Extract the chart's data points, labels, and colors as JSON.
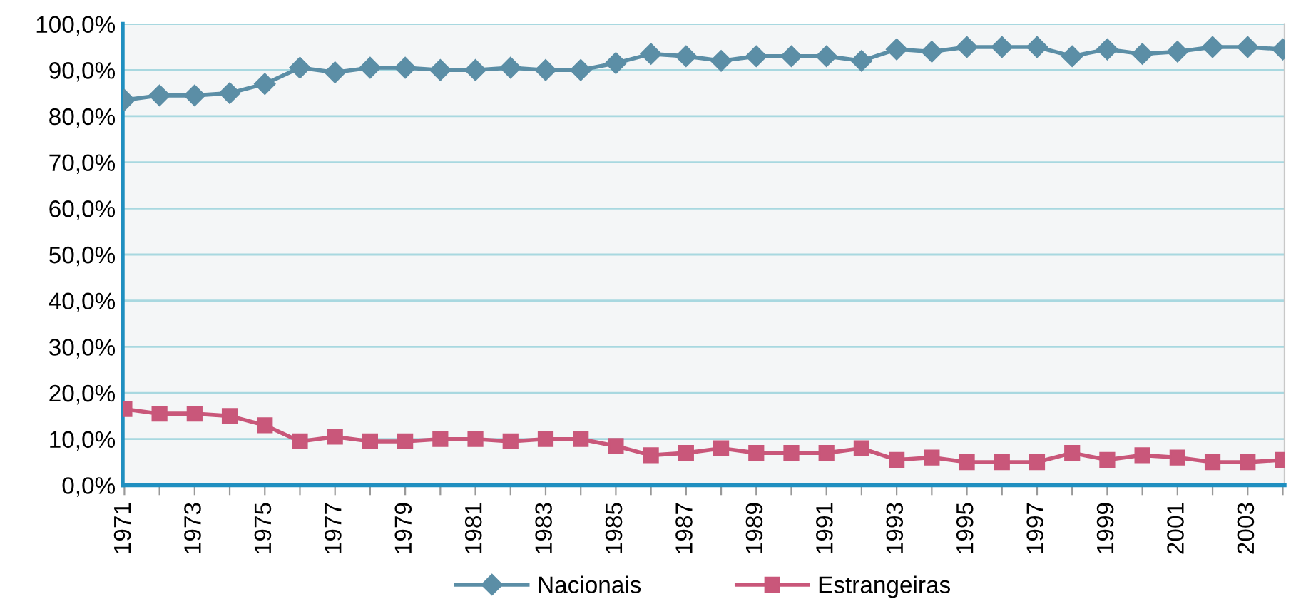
{
  "chart_data": {
    "type": "line",
    "categories": [
      "1971",
      null,
      "1973",
      null,
      "1975",
      null,
      "1977",
      null,
      "1979",
      null,
      "1981",
      null,
      "1983",
      null,
      "1985",
      null,
      "1987",
      null,
      "1989",
      null,
      "1991",
      null,
      "1993",
      null,
      "1995",
      null,
      "1997",
      null,
      "1999",
      null,
      "2001",
      null,
      "2003",
      null
    ],
    "series": [
      {
        "name": "Nacionais",
        "color": "#5b8ea6",
        "marker": "diamond",
        "values": [
          83.5,
          84.5,
          84.5,
          85,
          87,
          90.5,
          89.5,
          90.5,
          90.5,
          90,
          90,
          90.5,
          90,
          90,
          91.5,
          93.5,
          93,
          92,
          93,
          93,
          93,
          92,
          94.5,
          94,
          95,
          95,
          95,
          93,
          94.5,
          93.5,
          94,
          95,
          95,
          94.5
        ]
      },
      {
        "name": "Estrangeiras",
        "color": "#c9577a",
        "marker": "square",
        "values": [
          16.5,
          15.5,
          15.5,
          15,
          13,
          9.5,
          10.5,
          9.5,
          9.5,
          10,
          10,
          9.5,
          10,
          10,
          8.5,
          6.5,
          7,
          8,
          7,
          7,
          7,
          8,
          5.5,
          6,
          5,
          5,
          5,
          7,
          5.5,
          6.5,
          6,
          5,
          5,
          5.5
        ]
      }
    ],
    "ylim": [
      0,
      100
    ],
    "yticks": [
      {
        "value": 0,
        "label": "0,0%"
      },
      {
        "value": 10,
        "label": "10,0%"
      },
      {
        "value": 20,
        "label": "20,0%"
      },
      {
        "value": 30,
        "label": "30,0%"
      },
      {
        "value": 40,
        "label": "40,0%"
      },
      {
        "value": 50,
        "label": "50,0%"
      },
      {
        "value": 60,
        "label": "60,0%"
      },
      {
        "value": 70,
        "label": "70,0%"
      },
      {
        "value": 80,
        "label": "80,0%"
      },
      {
        "value": 90,
        "label": "90,0%"
      },
      {
        "value": 100,
        "label": "100,0%"
      }
    ],
    "grid": "y",
    "legend": "bottom",
    "line_style": "solid"
  }
}
